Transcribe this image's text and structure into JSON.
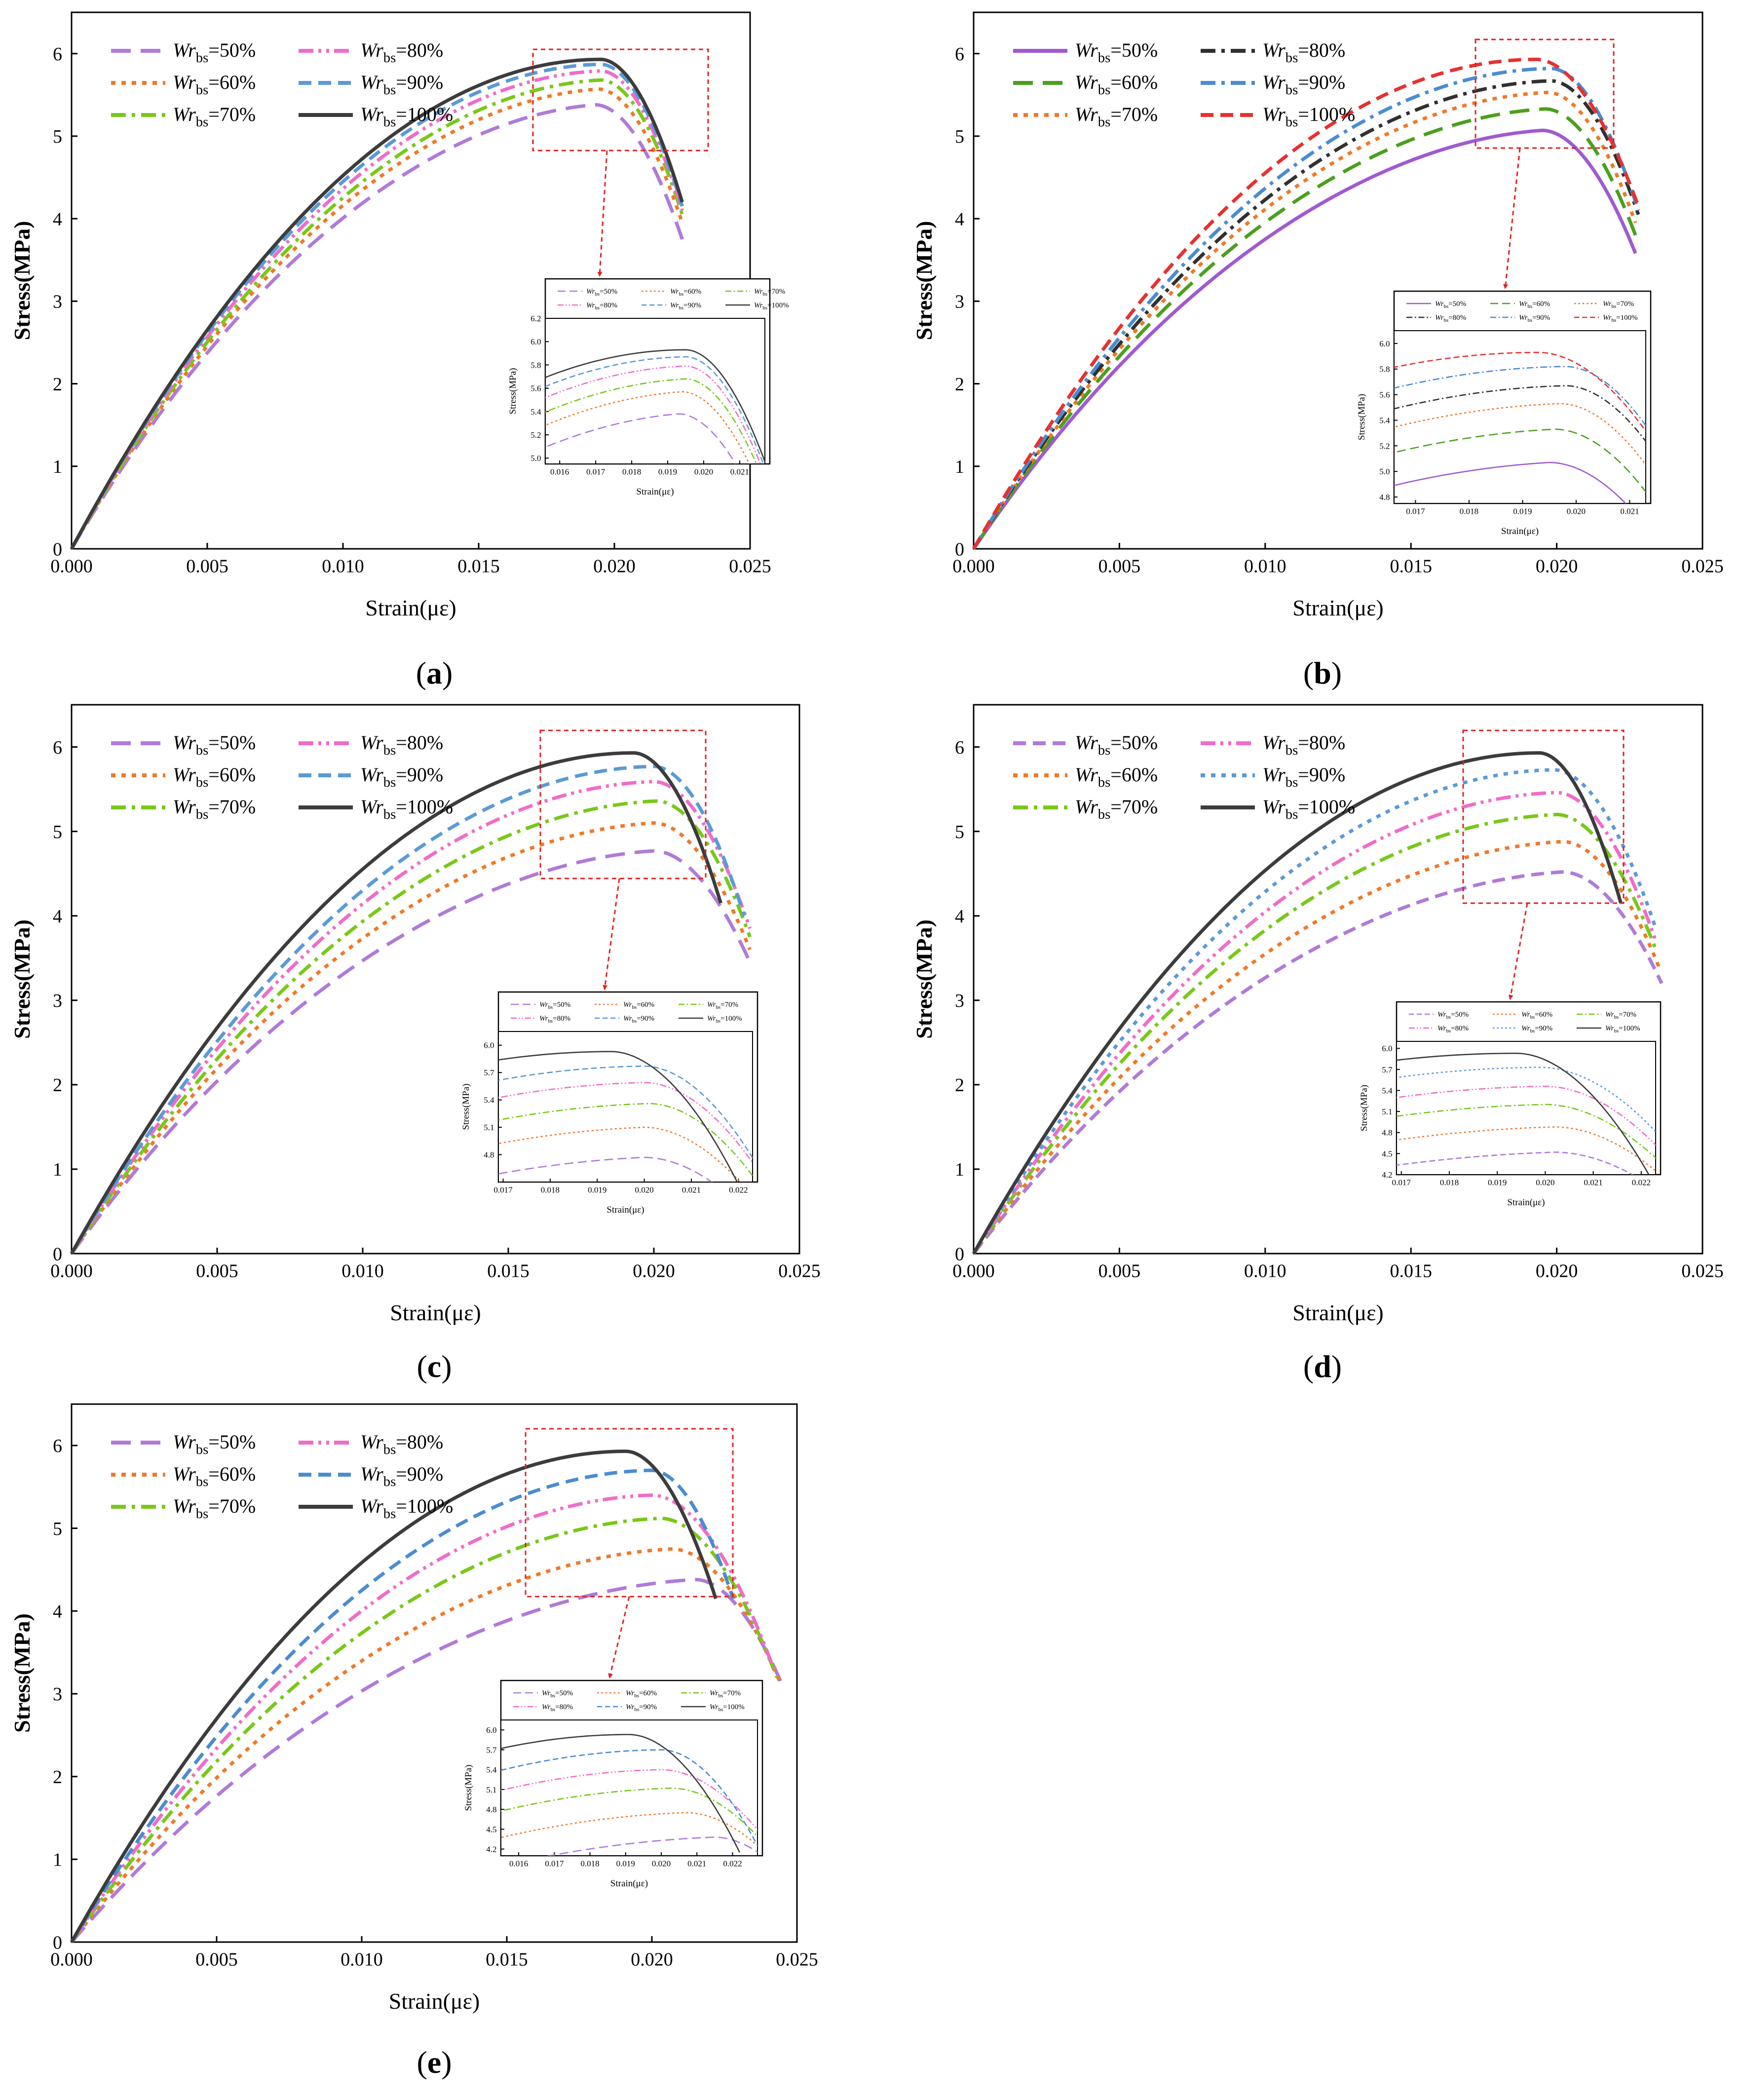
{
  "chart_data": [
    {
      "panel_label": "a",
      "type": "line",
      "xlabel": "Strain(με)",
      "ylabel": "Stress(MPa)",
      "xlim": [
        0.0,
        0.025
      ],
      "ylim": [
        0,
        6.5
      ],
      "xticks": [
        "0.000",
        "0.005",
        "0.010",
        "0.015",
        "0.020",
        "0.025"
      ],
      "yticks": [
        "0",
        "1",
        "2",
        "3",
        "4",
        "5",
        "6"
      ],
      "legend": {
        "placement": "top-left",
        "columns": 2,
        "order": [
          0,
          3,
          1,
          4,
          2,
          5
        ]
      },
      "series": [
        {
          "name": "Wrbs=50%",
          "color": "#b07ad8",
          "dash": "long-dash",
          "peak": [
            0.0193,
            5.38
          ],
          "end": [
            0.0225,
            3.75
          ]
        },
        {
          "name": "Wrbs=60%",
          "color": "#f07828",
          "dash": "dot",
          "peak": [
            0.0194,
            5.57
          ],
          "end": [
            0.0225,
            3.95
          ]
        },
        {
          "name": "Wrbs=70%",
          "color": "#78c818",
          "dash": "dash-dot",
          "peak": [
            0.0195,
            5.68
          ],
          "end": [
            0.0225,
            4.05
          ]
        },
        {
          "name": "Wrbs=80%",
          "color": "#f06cc8",
          "dash": "dash-dot-dot",
          "peak": [
            0.0195,
            5.79
          ],
          "end": [
            0.0225,
            4.1
          ]
        },
        {
          "name": "Wrbs=90%",
          "color": "#5a9ad6",
          "dash": "dash",
          "peak": [
            0.0195,
            5.87
          ],
          "end": [
            0.0225,
            4.15
          ]
        },
        {
          "name": "Wrbs=100%",
          "color": "#3c3c3c",
          "dash": "solid",
          "peak": [
            0.0195,
            5.93
          ],
          "end": [
            0.0225,
            4.2
          ]
        }
      ],
      "inset": {
        "xlabel": "Strain(με)",
        "ylabel": "Stress(MPa)",
        "xlim": [
          0.0156,
          0.0217
        ],
        "ylim": [
          4.95,
          6.2
        ],
        "xticks": [
          "0.016",
          "0.017",
          "0.018",
          "0.019",
          "0.020",
          "0.021"
        ],
        "yticks": [
          "5.0",
          "5.2",
          "5.4",
          "5.6",
          "5.8",
          "6.0",
          "6.2"
        ]
      }
    },
    {
      "panel_label": "b",
      "type": "line",
      "xlabel": "Strain(με)",
      "ylabel": "Stress(MPa)",
      "xlim": [
        0.0,
        0.025
      ],
      "ylim": [
        0,
        6.5
      ],
      "xticks": [
        "0.000",
        "0.005",
        "0.010",
        "0.015",
        "0.020",
        "0.025"
      ],
      "yticks": [
        "0",
        "1",
        "2",
        "3",
        "4",
        "5",
        "6"
      ],
      "legend": {
        "placement": "top-left",
        "columns": 2,
        "order": [
          0,
          3,
          1,
          4,
          2,
          5
        ]
      },
      "series": [
        {
          "name": "Wrbs=50%",
          "color": "#a05ad0",
          "dash": "solid",
          "peak": [
            0.0195,
            5.07
          ],
          "end": [
            0.0227,
            3.58
          ]
        },
        {
          "name": "Wrbs=60%",
          "color": "#4aa01c",
          "dash": "long-dash",
          "peak": [
            0.0196,
            5.33
          ],
          "end": [
            0.0227,
            3.8
          ]
        },
        {
          "name": "Wrbs=70%",
          "color": "#f07828",
          "dash": "dot",
          "peak": [
            0.0197,
            5.53
          ],
          "end": [
            0.0227,
            3.95
          ]
        },
        {
          "name": "Wrbs=80%",
          "color": "#303030",
          "dash": "dash-dot",
          "peak": [
            0.0198,
            5.67
          ],
          "end": [
            0.0228,
            4.05
          ]
        },
        {
          "name": "Wrbs=90%",
          "color": "#4a8cd0",
          "dash": "dash-dot",
          "peak": [
            0.0198,
            5.82
          ],
          "end": [
            0.0228,
            4.1
          ]
        },
        {
          "name": "Wrbs=100%",
          "color": "#e83030",
          "dash": "dash",
          "peak": [
            0.0193,
            5.93
          ],
          "end": [
            0.0228,
            4.15
          ]
        }
      ],
      "inset": {
        "xlabel": "Strain(με)",
        "ylabel": "Stress(MPa)",
        "xlim": [
          0.0166,
          0.0213
        ],
        "ylim": [
          4.75,
          6.1
        ],
        "xticks": [
          "0.017",
          "0.018",
          "0.019",
          "0.020",
          "0.021"
        ],
        "yticks": [
          "4.8",
          "5.0",
          "5.2",
          "5.4",
          "5.6",
          "5.8",
          "6.0"
        ]
      }
    },
    {
      "panel_label": "c",
      "type": "line",
      "xlabel": "Strain(με)",
      "ylabel": "Stress(MPa)",
      "xlim": [
        0.0,
        0.025
      ],
      "ylim": [
        0,
        6.5
      ],
      "xticks": [
        "0.000",
        "0.005",
        "0.010",
        "0.015",
        "0.020",
        "0.025"
      ],
      "yticks": [
        "0",
        "1",
        "2",
        "3",
        "4",
        "5",
        "6"
      ],
      "legend": {
        "placement": "top-left",
        "columns": 2,
        "order": [
          0,
          3,
          1,
          4,
          2,
          5
        ]
      },
      "series": [
        {
          "name": "Wrbs=50%",
          "color": "#b07ad8",
          "dash": "long-dash",
          "peak": [
            0.02,
            4.77
          ],
          "end": [
            0.0233,
            3.45
          ]
        },
        {
          "name": "Wrbs=60%",
          "color": "#f07828",
          "dash": "dot",
          "peak": [
            0.02,
            5.1
          ],
          "end": [
            0.0233,
            3.6
          ]
        },
        {
          "name": "Wrbs=70%",
          "color": "#78c818",
          "dash": "dash-dot",
          "peak": [
            0.0201,
            5.36
          ],
          "end": [
            0.0233,
            3.75
          ]
        },
        {
          "name": "Wrbs=80%",
          "color": "#f06cc8",
          "dash": "dash-dot-dot",
          "peak": [
            0.02,
            5.59
          ],
          "end": [
            0.0233,
            3.85
          ]
        },
        {
          "name": "Wrbs=90%",
          "color": "#5a9ad6",
          "dash": "dash",
          "peak": [
            0.02,
            5.77
          ],
          "end": [
            0.0231,
            4.0
          ]
        },
        {
          "name": "Wrbs=100%",
          "color": "#3c3c3c",
          "dash": "solid",
          "peak": [
            0.0193,
            5.93
          ],
          "end": [
            0.0223,
            4.15
          ]
        }
      ],
      "inset": {
        "xlabel": "Strain(με)",
        "ylabel": "Stress(MPa)",
        "xlim": [
          0.0169,
          0.0223
        ],
        "ylim": [
          4.5,
          6.15
        ],
        "xticks": [
          "0.017",
          "0.018",
          "0.019",
          "0.020",
          "0.021",
          "0.022"
        ],
        "yticks": [
          "4.8",
          "5.1",
          "5.4",
          "5.7",
          "6.0"
        ]
      }
    },
    {
      "panel_label": "d",
      "type": "line",
      "xlabel": "Strain(με)",
      "ylabel": "Stress(MPa)",
      "xlim": [
        0.0,
        0.025
      ],
      "ylim": [
        0,
        6.5
      ],
      "xticks": [
        "0.000",
        "0.005",
        "0.010",
        "0.015",
        "0.020",
        "0.025"
      ],
      "yticks": [
        "0",
        "1",
        "2",
        "3",
        "4",
        "5",
        "6"
      ],
      "legend": {
        "placement": "top-left",
        "columns": 2,
        "order": [
          0,
          3,
          1,
          4,
          2,
          5
        ]
      },
      "series": [
        {
          "name": "Wrbs=50%",
          "color": "#b07ad8",
          "dash": "dash",
          "peak": [
            0.0202,
            4.52
          ],
          "end": [
            0.0236,
            3.2
          ]
        },
        {
          "name": "Wrbs=60%",
          "color": "#f07828",
          "dash": "dot",
          "peak": [
            0.0202,
            4.88
          ],
          "end": [
            0.0235,
            3.4
          ]
        },
        {
          "name": "Wrbs=70%",
          "color": "#78c818",
          "dash": "dash-dot",
          "peak": [
            0.02,
            5.2
          ],
          "end": [
            0.0234,
            3.6
          ]
        },
        {
          "name": "Wrbs=80%",
          "color": "#f06cc8",
          "dash": "dash-dot-dot",
          "peak": [
            0.02,
            5.46
          ],
          "end": [
            0.0234,
            3.7
          ]
        },
        {
          "name": "Wrbs=90%",
          "color": "#5a9ad6",
          "dash": "dot",
          "peak": [
            0.0199,
            5.73
          ],
          "end": [
            0.0234,
            3.85
          ]
        },
        {
          "name": "Wrbs=100%",
          "color": "#3c3c3c",
          "dash": "solid",
          "peak": [
            0.0194,
            5.93
          ],
          "end": [
            0.0222,
            4.15
          ]
        }
      ],
      "inset": {
        "xlabel": "Strain(με)",
        "ylabel": "Stress(MPa)",
        "xlim": [
          0.0169,
          0.0223
        ],
        "ylim": [
          4.2,
          6.1
        ],
        "xticks": [
          "0.017",
          "0.018",
          "0.019",
          "0.020",
          "0.021",
          "0.022"
        ],
        "yticks": [
          "4.2",
          "4.5",
          "4.8",
          "5.1",
          "5.4",
          "5.7",
          "6.0"
        ]
      }
    },
    {
      "panel_label": "e",
      "type": "line",
      "xlabel": "Strain(με)",
      "ylabel": "Stress(MPa)",
      "xlim": [
        0.0,
        0.025
      ],
      "ylim": [
        0,
        6.5
      ],
      "xticks": [
        "0.000",
        "0.005",
        "0.010",
        "0.015",
        "0.020",
        "0.025"
      ],
      "yticks": [
        "0",
        "1",
        "2",
        "3",
        "4",
        "5",
        "6"
      ],
      "legend": {
        "placement": "top-left",
        "columns": 2,
        "order": [
          0,
          3,
          1,
          4,
          2,
          5
        ]
      },
      "series": [
        {
          "name": "Wrbs=50%",
          "color": "#b07ad8",
          "dash": "long-dash",
          "peak": [
            0.0215,
            4.38
          ],
          "end": [
            0.0245,
            3.1
          ]
        },
        {
          "name": "Wrbs=60%",
          "color": "#f07828",
          "dash": "dot",
          "peak": [
            0.0207,
            4.75
          ],
          "end": [
            0.0244,
            3.15
          ]
        },
        {
          "name": "Wrbs=70%",
          "color": "#78c818",
          "dash": "dash-dot",
          "peak": [
            0.0203,
            5.12
          ],
          "end": [
            0.0243,
            3.2
          ]
        },
        {
          "name": "Wrbs=80%",
          "color": "#f06cc8",
          "dash": "dash-dot-dot",
          "peak": [
            0.02,
            5.4
          ],
          "end": [
            0.0242,
            3.3
          ]
        },
        {
          "name": "Wrbs=90%",
          "color": "#4a8cd0",
          "dash": "dash",
          "peak": [
            0.02,
            5.7
          ],
          "end": [
            0.0228,
            4.15
          ]
        },
        {
          "name": "Wrbs=100%",
          "color": "#3c3c3c",
          "dash": "solid",
          "peak": [
            0.0191,
            5.93
          ],
          "end": [
            0.0222,
            4.15
          ]
        }
      ],
      "inset": {
        "xlabel": "Strain(με)",
        "ylabel": "Stress(MPa)",
        "xlim": [
          0.0155,
          0.0227
        ],
        "ylim": [
          4.1,
          6.15
        ],
        "xticks": [
          "0.016",
          "0.017",
          "0.018",
          "0.019",
          "0.020",
          "0.021",
          "0.022"
        ],
        "yticks": [
          "4.2",
          "4.5",
          "4.8",
          "5.1",
          "5.4",
          "5.7",
          "6.0"
        ]
      }
    }
  ]
}
